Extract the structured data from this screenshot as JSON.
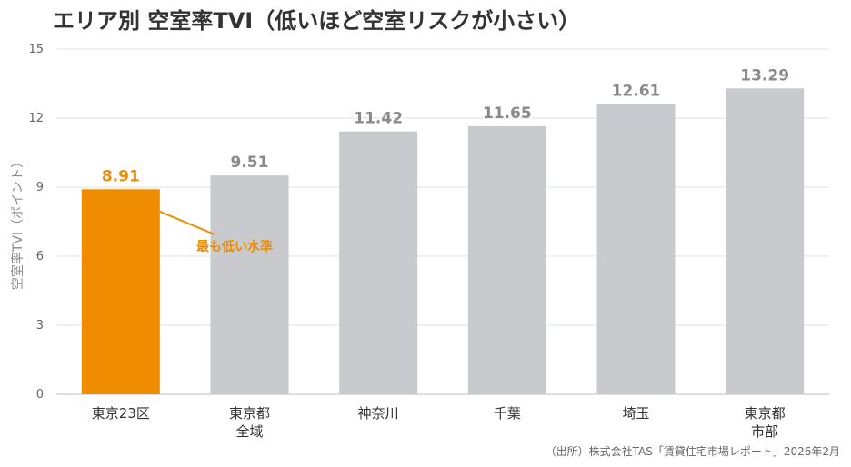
{
  "colors": {
    "highlight": "#ef8c00",
    "bar": "#c8cacd",
    "value_label": "#8a8a8a",
    "grid": "#e2e2e2"
  },
  "chart_data": {
    "type": "bar",
    "title": "エリア別 空室率TVI（低いほど空室リスクが小さい）",
    "ylabel": "空室率TVI（ポイント）",
    "xlabel": "",
    "ylim": [
      0,
      15
    ],
    "yticks": [
      0,
      3,
      6,
      9,
      12,
      15
    ],
    "grid": true,
    "categories": [
      [
        "東京23区"
      ],
      [
        "東京都",
        "全域"
      ],
      [
        "神奈川"
      ],
      [
        "千葉"
      ],
      [
        "埼玉"
      ],
      [
        "東京都",
        "市部"
      ]
    ],
    "values": [
      8.91,
      9.51,
      11.42,
      11.65,
      12.61,
      13.29
    ],
    "value_labels": [
      "8.91",
      "9.51",
      "11.42",
      "11.65",
      "12.61",
      "13.29"
    ],
    "highlight_index": 0,
    "annotation": {
      "text": "最も低い水準",
      "target_index": 0
    },
    "source": "（出所）株式会社TAS「賃貸住宅市場レポート」2026年2月"
  }
}
